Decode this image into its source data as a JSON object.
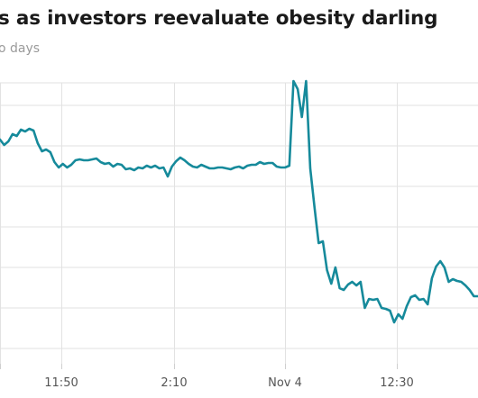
{
  "title": "s as investors reevaluate obesity darling",
  "subtitle": "o days",
  "colors": {
    "line": "#168a9b",
    "grid": "#e2e2e2",
    "text": "#555555"
  },
  "chart_data": {
    "type": "line",
    "title": "s as investors reevaluate obesity darling",
    "subtitle": "o days",
    "xlabel": "",
    "ylabel": "",
    "grid": true,
    "x_tick_labels": [
      "11:50",
      "2:10",
      "Nov 4",
      "12:30"
    ],
    "series": [
      {
        "values": [
          155,
          161,
          157,
          149,
          151,
          144,
          146,
          143,
          145,
          159,
          168,
          166,
          169,
          180,
          186,
          182,
          186,
          183,
          178,
          177,
          178,
          178,
          177,
          176,
          180,
          182,
          181,
          185,
          182,
          183,
          188,
          187,
          189,
          186,
          187,
          184,
          186,
          184,
          187,
          186,
          196,
          185,
          179,
          175,
          178,
          182,
          185,
          186,
          183,
          185,
          187,
          187,
          186,
          186,
          187,
          188,
          186,
          185,
          187,
          184,
          183,
          183,
          180,
          182,
          181,
          181,
          185,
          186,
          186,
          184,
          90,
          99,
          130,
          90,
          187,
          230,
          270,
          268,
          300,
          315,
          297,
          320,
          322,
          316,
          313,
          317,
          313,
          342,
          332,
          333,
          332,
          342,
          343,
          345,
          358,
          349,
          354,
          340,
          330,
          328,
          333,
          332,
          338,
          309,
          296,
          290,
          297,
          313,
          310,
          312,
          313,
          317,
          322,
          329,
          329
        ]
      }
    ],
    "x_axis_label_values": []
  }
}
